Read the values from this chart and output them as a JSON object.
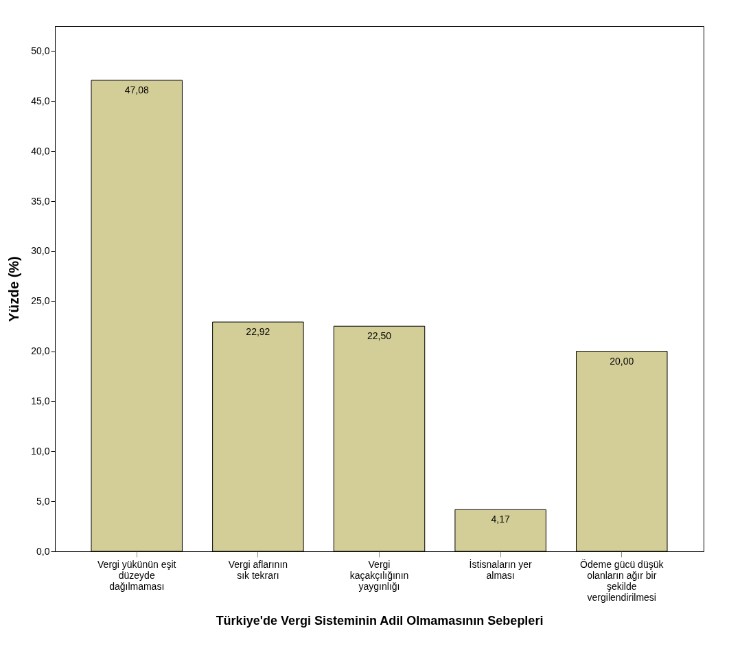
{
  "chart_data": {
    "type": "bar",
    "xlabel": "Türkiye'de Vergi Sisteminin Adil Olmamasının Sebepleri",
    "ylabel": "Yüzde (%)",
    "categories": [
      "Vergi yükünün eşit düzeyde dağılmaması",
      "Vergi aflarının sık tekrarı",
      "Vergi kaçakçılığının yaygınlığı",
      "İstisnaların yer alması",
      "Ödeme gücü düşük olanların ağır bir şekilde vergilendirilmesi"
    ],
    "values": [
      47.08,
      22.92,
      22.5,
      4.17,
      20.0
    ],
    "value_labels": [
      "47,08",
      "22,92",
      "22,50",
      "4,17",
      "20,00"
    ],
    "color": "#d3ce97",
    "ylim": [
      0,
      52.5
    ],
    "yticks": [
      {
        "value": 0,
        "label": "0,0"
      },
      {
        "value": 5,
        "label": "5,0"
      },
      {
        "value": 10,
        "label": "10,0"
      },
      {
        "value": 15,
        "label": "15,0"
      },
      {
        "value": 20,
        "label": "20,0"
      },
      {
        "value": 25,
        "label": "25,0"
      },
      {
        "value": 30,
        "label": "30,0"
      },
      {
        "value": 35,
        "label": "35,0"
      },
      {
        "value": 40,
        "label": "40,0"
      },
      {
        "value": 45,
        "label": "45,0"
      },
      {
        "value": 50,
        "label": "50,0"
      }
    ],
    "grid": false
  }
}
